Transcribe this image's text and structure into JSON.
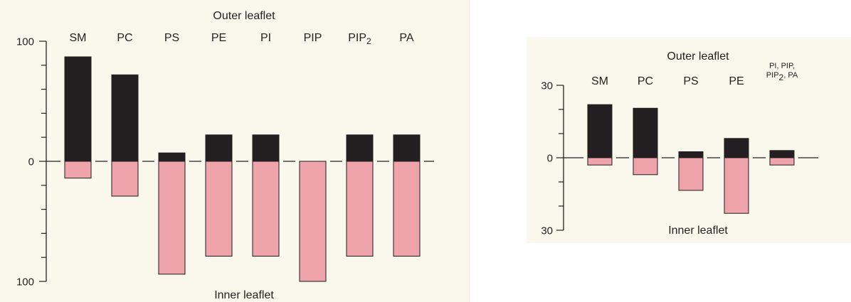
{
  "colors": {
    "outer": "#231f20",
    "inner": "#efa3ab",
    "axis": "#222222",
    "background": "#faf8ec"
  },
  "chart_data": [
    {
      "type": "bar",
      "title": "Outer leaflet",
      "xlabel": "Inner leaflet",
      "yticks": [
        "100",
        "0",
        "100"
      ],
      "ylim": [
        -100,
        100
      ],
      "categories": [
        "SM",
        "PC",
        "PS",
        "PE",
        "PI",
        "PIP",
        "PIP2",
        "PA"
      ],
      "series": [
        {
          "name": "Outer leaflet",
          "values": [
            87,
            72,
            7,
            22,
            22,
            0,
            22,
            22
          ]
        },
        {
          "name": "Inner leaflet",
          "values": [
            14,
            29,
            94,
            79,
            79,
            100,
            79,
            79
          ]
        }
      ],
      "grid": false
    },
    {
      "type": "bar",
      "title": "Outer leaflet",
      "xlabel": "Inner leaflet",
      "yticks": [
        "30",
        "0",
        "30"
      ],
      "ylim": [
        -30,
        30
      ],
      "categories": [
        "SM",
        "PC",
        "PS",
        "PE",
        "PI, PIP, PIP2, PA"
      ],
      "series": [
        {
          "name": "Outer leaflet",
          "values": [
            22,
            20.5,
            2.5,
            8,
            3
          ]
        },
        {
          "name": "Inner leaflet",
          "values": [
            3,
            7,
            13.5,
            23,
            3
          ]
        }
      ],
      "grid": false
    }
  ]
}
